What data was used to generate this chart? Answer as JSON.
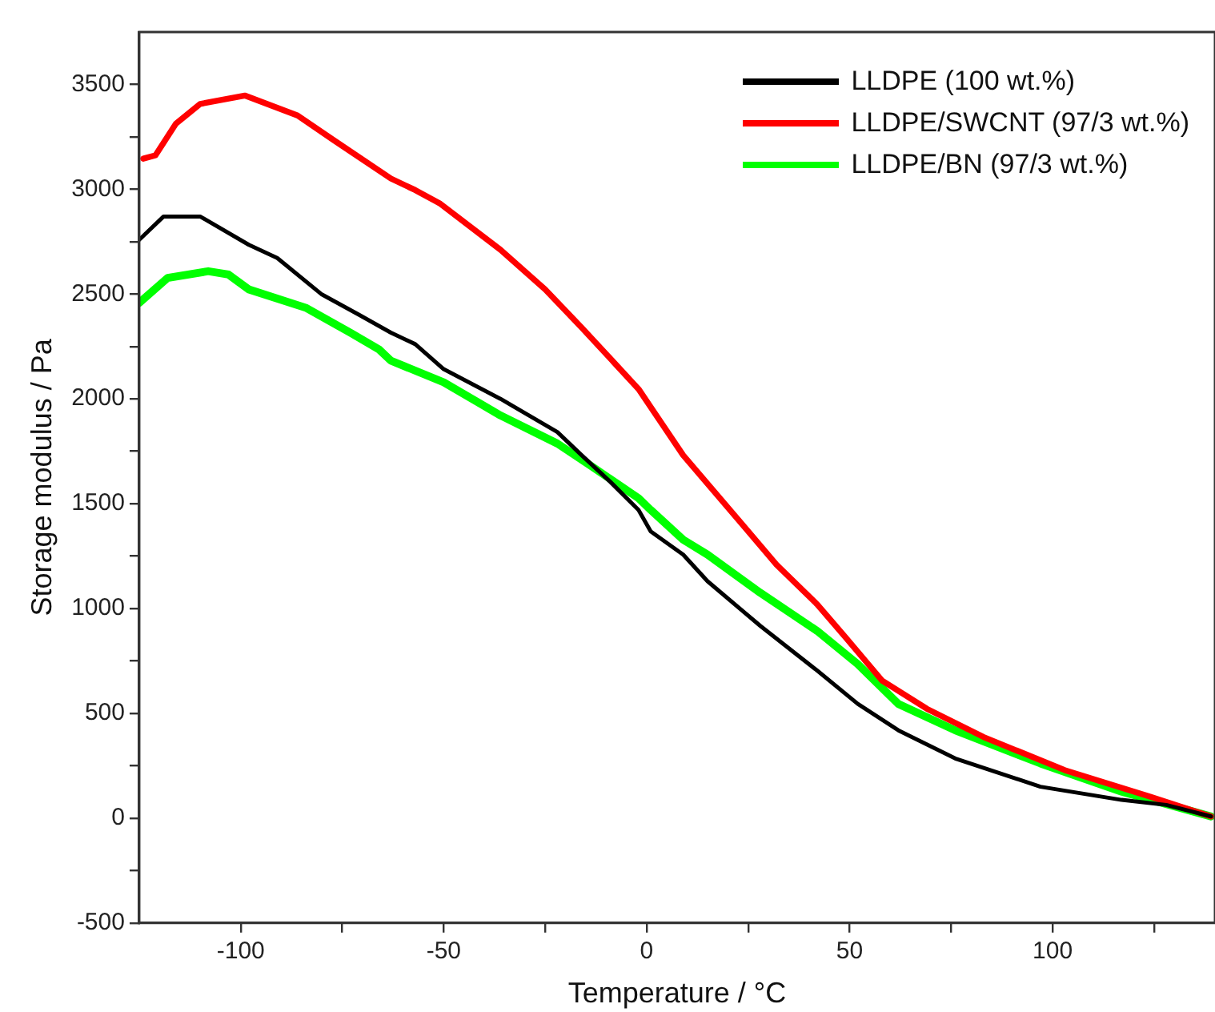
{
  "chart_data": {
    "type": "line",
    "xlabel": "Temperature / °C",
    "ylabel": "Storage modulus / Pa",
    "xlim": [
      -125,
      140
    ],
    "ylim": [
      -500,
      3750
    ],
    "xticks": [
      -100,
      {
        "value": -75,
        "label": null
      },
      -50,
      {
        "value": -25,
        "label": null
      },
      0,
      {
        "value": 25,
        "label": null
      },
      50,
      {
        "value": 75,
        "label": null
      },
      100,
      {
        "value": 125,
        "label": null
      }
    ],
    "yticks": [
      -500,
      {
        "value": -250,
        "label": null
      },
      0,
      {
        "value": 250,
        "label": null
      },
      500,
      {
        "value": 750,
        "label": null
      },
      1000,
      {
        "value": 1250,
        "label": null
      },
      1500,
      {
        "value": 1750,
        "label": null
      },
      2000,
      {
        "value": 2250,
        "label": null
      },
      2500,
      {
        "value": 2750,
        "label": null
      },
      3000,
      {
        "value": 3250,
        "label": null
      },
      3500
    ],
    "grid": false,
    "legend": "top right",
    "marker": "none",
    "line_style": "solid",
    "series": [
      {
        "name": "LLDPE (100 wt.%)",
        "color": "#000000",
        "x": [
          -125,
          -119,
          -110,
          -98,
          -91,
          -80,
          -71,
          -63,
          -57,
          -50,
          -36,
          -22,
          -16,
          -9,
          -2,
          1,
          9,
          15,
          28,
          42,
          52,
          62,
          76,
          97,
          117,
          128,
          139
        ],
        "values": [
          2759,
          2870,
          2870,
          2735,
          2672,
          2498,
          2403,
          2316,
          2261,
          2142,
          2000,
          1842,
          1731,
          1605,
          1470,
          1368,
          1257,
          1130,
          917,
          704,
          545,
          419,
          285,
          150,
          87,
          63,
          8
        ]
      },
      {
        "name": "LLDPE/SWCNT (97/3 wt.%)",
        "color": "#ff0000",
        "x": [
          -124,
          -121,
          -116,
          -110,
          -99,
          -86,
          -77,
          -63,
          -57,
          -51,
          -36,
          -25,
          -16,
          -2,
          9,
          24,
          32,
          42,
          49,
          58,
          69,
          83,
          103,
          124,
          139
        ],
        "values": [
          3146,
          3162,
          3312,
          3407,
          3447,
          3352,
          3233,
          3051,
          2996,
          2933,
          2711,
          2522,
          2340,
          2047,
          1731,
          1391,
          1209,
          1020,
          862,
          656,
          522,
          387,
          229,
          103,
          8
        ]
      },
      {
        "name": "LLDPE/BN (97/3 wt.%)",
        "color": "#00ff00",
        "x": [
          -125,
          -118,
          -108,
          -103,
          -98,
          -84,
          -73,
          -66,
          -63,
          -50,
          -36,
          -22,
          -14,
          -2,
          1,
          9,
          15,
          28,
          42,
          52,
          62,
          76,
          97,
          117,
          139
        ],
        "values": [
          2458,
          2577,
          2609,
          2593,
          2522,
          2435,
          2316,
          2237,
          2182,
          2079,
          1921,
          1787,
          1684,
          1526,
          1470,
          1328,
          1257,
          1075,
          893,
          735,
          545,
          419,
          261,
          126,
          8
        ]
      }
    ]
  }
}
